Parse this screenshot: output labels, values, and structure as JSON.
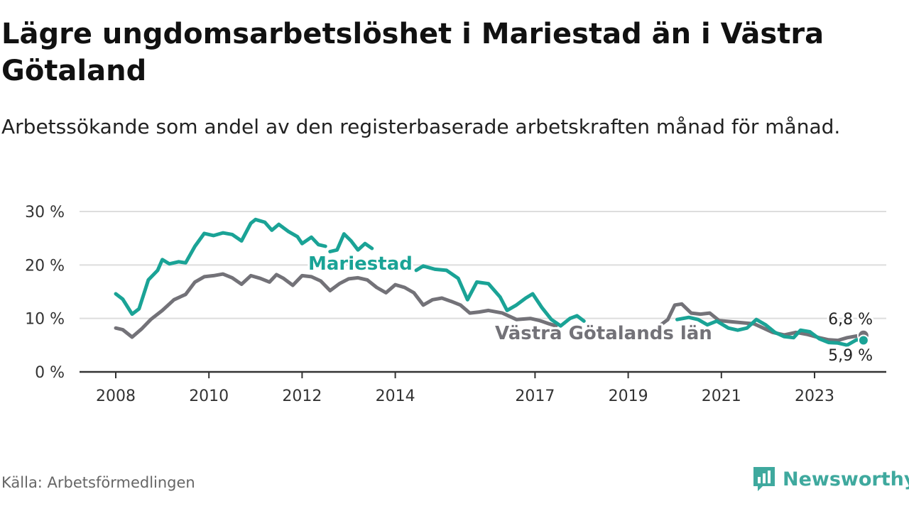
{
  "title": "Lägre ungdomsarbetslöshet i Mariestad än i Västra Götaland",
  "subtitle": "Arbetssökande som andel av den registerbaserade arbetskraften månad för månad.",
  "source": "Källa: Arbetsförmedlingen",
  "brand": "Newsworthy",
  "colors": {
    "mariestad": "#1aa396",
    "vastra": "#737278",
    "grid": "#dddddd",
    "axis": "#333333",
    "brand": "#3fa99e"
  },
  "chart_data": {
    "type": "line",
    "title": "Lägre ungdomsarbetslöshet i Mariestad än i Västra Götaland",
    "xlabel": "",
    "ylabel": "",
    "ylim": [
      0,
      30
    ],
    "xlim": [
      2007.5,
      2024.5
    ],
    "yticks": [
      {
        "value": 0,
        "label": "0 %"
      },
      {
        "value": 10,
        "label": "10 %"
      },
      {
        "value": 20,
        "label": "20 %"
      },
      {
        "value": 30,
        "label": "30 %"
      }
    ],
    "xticks": [
      {
        "value": 2008,
        "label": "2008"
      },
      {
        "value": 2010,
        "label": "2010"
      },
      {
        "value": 2012,
        "label": "2012"
      },
      {
        "value": 2014,
        "label": "2014"
      },
      {
        "value": 2017,
        "label": "2017"
      },
      {
        "value": 2019,
        "label": "2019"
      },
      {
        "value": 2021,
        "label": "2021"
      },
      {
        "value": 2023,
        "label": "2023"
      }
    ],
    "grid": true,
    "series": [
      {
        "name": "Västra Götalands län",
        "label": "Västra Götalands län",
        "end_label": "6,8 %",
        "end_value": 6.8,
        "color": "#737278",
        "segments": [
          [
            [
              2008.0,
              8.2
            ],
            [
              2008.15,
              7.9
            ],
            [
              2008.35,
              6.5
            ],
            [
              2008.55,
              8.0
            ],
            [
              2008.75,
              9.8
            ],
            [
              2009.0,
              11.5
            ],
            [
              2009.25,
              13.5
            ],
            [
              2009.5,
              14.5
            ],
            [
              2009.7,
              16.8
            ],
            [
              2009.9,
              17.8
            ],
            [
              2010.1,
              18.0
            ],
            [
              2010.3,
              18.3
            ],
            [
              2010.5,
              17.6
            ],
            [
              2010.7,
              16.4
            ],
            [
              2010.9,
              18.0
            ],
            [
              2011.1,
              17.5
            ],
            [
              2011.3,
              16.8
            ],
            [
              2011.45,
              18.2
            ],
            [
              2011.6,
              17.5
            ],
            [
              2011.8,
              16.2
            ],
            [
              2012.0,
              18.0
            ],
            [
              2012.2,
              17.8
            ],
            [
              2012.4,
              17.0
            ],
            [
              2012.6,
              15.2
            ],
            [
              2012.8,
              16.5
            ],
            [
              2013.0,
              17.4
            ],
            [
              2013.2,
              17.6
            ],
            [
              2013.4,
              17.2
            ],
            [
              2013.6,
              15.8
            ],
            [
              2013.8,
              14.8
            ],
            [
              2014.0,
              16.3
            ],
            [
              2014.2,
              15.8
            ],
            [
              2014.4,
              14.8
            ],
            [
              2014.6,
              12.5
            ],
            [
              2014.8,
              13.5
            ],
            [
              2015.0,
              13.8
            ],
            [
              2015.2,
              13.2
            ],
            [
              2015.4,
              12.5
            ],
            [
              2015.6,
              11.0
            ],
            [
              2015.8,
              11.2
            ],
            [
              2016.0,
              11.5
            ],
            [
              2016.3,
              11.0
            ],
            [
              2016.6,
              9.8
            ],
            [
              2016.9,
              10.0
            ],
            [
              2017.1,
              9.6
            ],
            [
              2017.3,
              9.0
            ],
            [
              2017.45,
              8.6
            ]
          ],
          [
            [
              2019.7,
              8.8
            ],
            [
              2019.85,
              9.8
            ],
            [
              2020.0,
              12.5
            ],
            [
              2020.15,
              12.7
            ],
            [
              2020.35,
              11.0
            ],
            [
              2020.55,
              10.8
            ],
            [
              2020.75,
              11.0
            ],
            [
              2020.95,
              9.6
            ],
            [
              2021.2,
              9.4
            ],
            [
              2021.45,
              9.2
            ],
            [
              2021.7,
              9.0
            ],
            [
              2021.9,
              8.2
            ],
            [
              2022.1,
              7.4
            ],
            [
              2022.35,
              6.9
            ],
            [
              2022.6,
              7.4
            ],
            [
              2022.85,
              7.0
            ],
            [
              2023.1,
              6.4
            ],
            [
              2023.3,
              6.0
            ],
            [
              2023.5,
              5.9
            ],
            [
              2023.7,
              6.4
            ],
            [
              2023.9,
              6.7
            ],
            [
              2024.05,
              6.8
            ]
          ]
        ]
      },
      {
        "name": "Mariestad",
        "label": "Mariestad",
        "end_label": "5,9 %",
        "end_value": 5.9,
        "color": "#1aa396",
        "segments": [
          [
            [
              2008.0,
              14.6
            ],
            [
              2008.15,
              13.6
            ],
            [
              2008.35,
              10.8
            ],
            [
              2008.5,
              11.8
            ],
            [
              2008.7,
              17.2
            ],
            [
              2008.9,
              19.0
            ],
            [
              2009.0,
              21.0
            ],
            [
              2009.15,
              20.2
            ],
            [
              2009.35,
              20.6
            ],
            [
              2009.5,
              20.4
            ],
            [
              2009.7,
              23.5
            ],
            [
              2009.9,
              25.9
            ],
            [
              2010.1,
              25.5
            ],
            [
              2010.3,
              26.0
            ],
            [
              2010.5,
              25.7
            ],
            [
              2010.7,
              24.5
            ],
            [
              2010.9,
              27.8
            ],
            [
              2011.0,
              28.5
            ],
            [
              2011.2,
              28.0
            ],
            [
              2011.35,
              26.5
            ],
            [
              2011.5,
              27.6
            ],
            [
              2011.7,
              26.3
            ],
            [
              2011.9,
              25.3
            ],
            [
              2012.0,
              24.0
            ],
            [
              2012.2,
              25.2
            ],
            [
              2012.35,
              23.8
            ],
            [
              2012.5,
              23.5
            ]
          ],
          [
            [
              2012.6,
              22.5
            ],
            [
              2012.75,
              22.8
            ],
            [
              2012.9,
              25.8
            ],
            [
              2013.05,
              24.5
            ],
            [
              2013.2,
              22.8
            ],
            [
              2013.35,
              24.0
            ],
            [
              2013.5,
              23.1
            ]
          ],
          [
            [
              2014.45,
              19.0
            ],
            [
              2014.6,
              19.8
            ],
            [
              2014.85,
              19.2
            ],
            [
              2015.1,
              19.0
            ],
            [
              2015.35,
              17.5
            ],
            [
              2015.55,
              13.5
            ],
            [
              2015.75,
              16.8
            ],
            [
              2016.0,
              16.5
            ],
            [
              2016.25,
              14.0
            ],
            [
              2016.4,
              11.5
            ],
            [
              2016.6,
              12.5
            ],
            [
              2016.8,
              13.8
            ],
            [
              2016.95,
              14.6
            ],
            [
              2017.15,
              12.0
            ],
            [
              2017.35,
              9.8
            ],
            [
              2017.55,
              8.6
            ],
            [
              2017.75,
              10.0
            ],
            [
              2017.9,
              10.5
            ],
            [
              2018.05,
              9.5
            ]
          ],
          [
            [
              2020.05,
              9.8
            ],
            [
              2020.3,
              10.2
            ],
            [
              2020.5,
              9.8
            ],
            [
              2020.7,
              8.8
            ],
            [
              2020.9,
              9.5
            ],
            [
              2021.15,
              8.2
            ],
            [
              2021.35,
              7.8
            ],
            [
              2021.55,
              8.2
            ],
            [
              2021.75,
              9.8
            ],
            [
              2021.95,
              8.8
            ],
            [
              2022.15,
              7.4
            ],
            [
              2022.35,
              6.6
            ],
            [
              2022.55,
              6.4
            ],
            [
              2022.7,
              7.8
            ],
            [
              2022.9,
              7.5
            ],
            [
              2023.1,
              6.2
            ],
            [
              2023.3,
              5.5
            ],
            [
              2023.5,
              5.4
            ],
            [
              2023.7,
              5.0
            ],
            [
              2023.9,
              6.0
            ],
            [
              2024.05,
              5.9
            ]
          ]
        ]
      }
    ]
  }
}
